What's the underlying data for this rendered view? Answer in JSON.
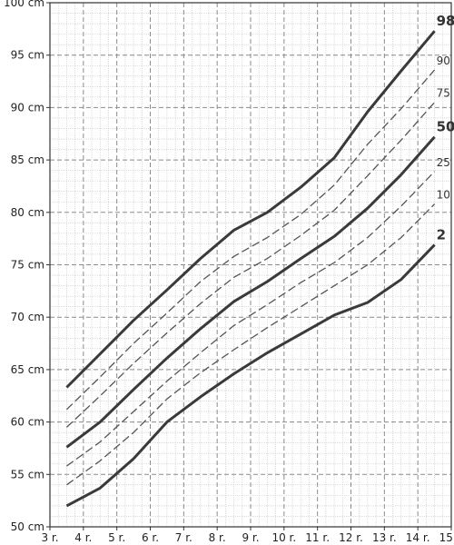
{
  "chart_data": {
    "type": "line",
    "title": "",
    "xlabel": "",
    "ylabel": "",
    "unit": "cm",
    "x": [
      3.5,
      4.5,
      5.5,
      6.5,
      7.5,
      8.5,
      9.5,
      10.5,
      11.5,
      12.5,
      13.5,
      14.5
    ],
    "xlim": [
      3,
      15
    ],
    "ylim": [
      50,
      100
    ],
    "x_tick_labels": [
      "3 r.",
      "4 r.",
      "5 r.",
      "6 r.",
      "7 r.",
      "8 r.",
      "9 r.",
      "10 r.",
      "11 r.",
      "12 r.",
      "13 r.",
      "14 r.",
      "15 r."
    ],
    "y_tick_labels": [
      "50 cm",
      "55 cm",
      "60 cm",
      "65 cm",
      "70 cm",
      "75 cm",
      "80 cm",
      "85 cm",
      "90 cm",
      "95 cm",
      "100 cm"
    ],
    "grid": true,
    "series": [
      {
        "name": "98",
        "style": "major",
        "values": [
          63.3,
          66.5,
          69.7,
          72.6,
          75.6,
          78.3,
          80.0,
          82.4,
          85.2,
          89.6,
          93.5,
          97.3
        ]
      },
      {
        "name": "90",
        "style": "minor",
        "values": [
          61.2,
          64.3,
          67.5,
          70.4,
          73.4,
          75.8,
          77.6,
          79.8,
          82.6,
          86.5,
          89.9,
          93.6
        ]
      },
      {
        "name": "75",
        "style": "minor",
        "values": [
          59.5,
          62.5,
          65.6,
          68.5,
          71.3,
          73.8,
          75.6,
          77.8,
          80.2,
          83.5,
          86.9,
          90.5
        ]
      },
      {
        "name": "50",
        "style": "major",
        "values": [
          57.6,
          60.0,
          63.1,
          66.1,
          68.9,
          71.5,
          73.4,
          75.6,
          77.7,
          80.4,
          83.6,
          87.2
        ]
      },
      {
        "name": "25",
        "style": "minor",
        "values": [
          55.8,
          58.1,
          61.0,
          63.9,
          66.6,
          69.2,
          71.2,
          73.3,
          75.2,
          77.6,
          80.6,
          83.9
        ]
      },
      {
        "name": "10",
        "style": "minor",
        "values": [
          54.0,
          56.3,
          59.0,
          62.2,
          64.7,
          66.9,
          69.0,
          71.0,
          73.0,
          75.0,
          77.6,
          80.8
        ]
      },
      {
        "name": "2",
        "style": "major",
        "values": [
          52.0,
          53.7,
          56.5,
          60.0,
          62.4,
          64.6,
          66.6,
          68.4,
          70.2,
          71.4,
          73.6,
          76.9
        ]
      }
    ]
  }
}
